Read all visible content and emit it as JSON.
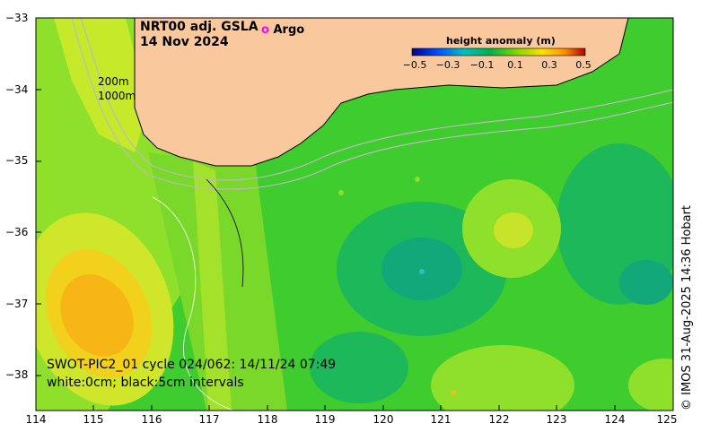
{
  "map": {
    "title_line1": "NRT00 adj. GSLA",
    "title_line2": "14 Nov 2024",
    "argo_symbol": "o",
    "argo_label": "Argo",
    "depth_label_1": "200m",
    "depth_label_2": "1000m",
    "swot_line1": "SWOT-PIC2_01 cycle 024/062: 14/11/24 07:49",
    "swot_line2": "white:0cm; black:5cm intervals",
    "credit": "© IMOS 31-Aug-2025 14:36 Hobart",
    "x_ticks": [
      "114",
      "115",
      "116",
      "117",
      "118",
      "119",
      "120",
      "121",
      "122",
      "123",
      "124",
      "125"
    ],
    "y_ticks": [
      "−33",
      "−34",
      "−35",
      "−36",
      "−37",
      "−38"
    ],
    "colors": {
      "land": "#f9c99d",
      "ocean_base": "#3fcc2e",
      "argo": "#ff00ff"
    }
  },
  "colorbar": {
    "title": "height anomaly (m)",
    "ticks": [
      "−0.5",
      "−0.3",
      "−0.1",
      "0.1",
      "0.3",
      "0.5"
    ],
    "colors": [
      "#00008b",
      "#0050ff",
      "#00c0c0",
      "#00b050",
      "#7fd600",
      "#ffe000",
      "#ff9000",
      "#b00000"
    ]
  }
}
